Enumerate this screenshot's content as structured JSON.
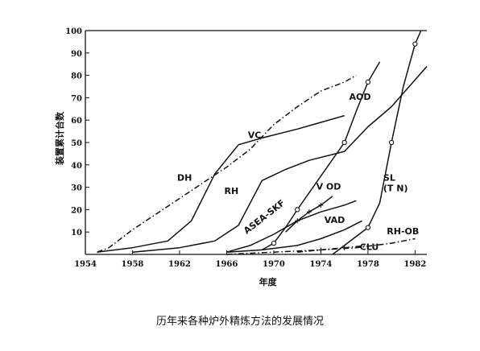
{
  "chart_data": {
    "type": "line",
    "title": "",
    "xlabel": "年度",
    "ylabel": "装置累计台数",
    "xlim": [
      1954,
      1983
    ],
    "ylim": [
      0,
      100
    ],
    "x_ticks": [
      1954,
      1958,
      1962,
      1966,
      1970,
      1974,
      1978,
      1982
    ],
    "y_ticks": [
      10,
      20,
      30,
      40,
      50,
      60,
      70,
      80,
      90,
      100
    ],
    "grid": false,
    "legend": "none",
    "series": [
      {
        "name": "DH",
        "style": "dashdot",
        "label_anchor": [
          1961.8,
          33
        ],
        "points": [
          [
            1955,
            1
          ],
          [
            1956,
            3
          ],
          [
            1958,
            11
          ],
          [
            1960,
            18
          ],
          [
            1962,
            25
          ],
          [
            1964,
            32
          ],
          [
            1966,
            39
          ],
          [
            1968,
            47
          ],
          [
            1970,
            58
          ],
          [
            1972,
            66
          ],
          [
            1974,
            73
          ],
          [
            1976,
            77
          ],
          [
            1977,
            80
          ]
        ]
      },
      {
        "name": "VC",
        "style": "solid",
        "label_anchor": [
          1967.8,
          52
        ],
        "points": [
          [
            1955,
            1
          ],
          [
            1958,
            3
          ],
          [
            1961,
            6
          ],
          [
            1963,
            15
          ],
          [
            1965,
            36
          ],
          [
            1967,
            49
          ],
          [
            1969,
            52
          ],
          [
            1972,
            56
          ],
          [
            1974,
            59
          ],
          [
            1976,
            62
          ]
        ]
      },
      {
        "name": "RH",
        "style": "solid",
        "label_anchor": [
          1965.8,
          27
        ],
        "points": [
          [
            1958,
            1
          ],
          [
            1962,
            3
          ],
          [
            1965,
            6
          ],
          [
            1967,
            13
          ],
          [
            1969,
            33
          ],
          [
            1971,
            38
          ],
          [
            1973,
            42
          ],
          [
            1976,
            46
          ],
          [
            1978,
            57
          ],
          [
            1980,
            66
          ],
          [
            1981,
            72
          ],
          [
            1983,
            84
          ]
        ]
      },
      {
        "name": "ASEA-SKF",
        "style": "solid",
        "label_anchor": [
          1967.7,
          9
        ],
        "points": [
          [
            1966,
            1
          ],
          [
            1968,
            4
          ],
          [
            1970,
            9
          ],
          [
            1972,
            15
          ],
          [
            1974,
            19
          ],
          [
            1976,
            22
          ],
          [
            1977,
            24
          ]
        ]
      },
      {
        "name": "AOD",
        "style": "solid",
        "marker": "circle",
        "label_anchor": [
          1976.4,
          69
        ],
        "points": [
          [
            1969,
            2
          ],
          [
            1970,
            5
          ],
          [
            1971,
            12
          ],
          [
            1972,
            20
          ],
          [
            1974,
            35
          ],
          [
            1976,
            50
          ],
          [
            1977,
            64
          ],
          [
            1978,
            77
          ],
          [
            1979,
            86
          ]
        ]
      },
      {
        "name": "V OD",
        "style": "solid",
        "marker": "cross",
        "label_anchor": [
          1973.6,
          29
        ],
        "points": [
          [
            1971,
            10
          ],
          [
            1972,
            15
          ],
          [
            1973,
            19
          ],
          [
            1974,
            22
          ],
          [
            1975,
            26
          ]
        ]
      },
      {
        "name": "VAD",
        "style": "solid",
        "label_anchor": [
          1974.3,
          14
        ],
        "points": [
          [
            1966,
            1
          ],
          [
            1969,
            2
          ],
          [
            1972,
            4
          ],
          [
            1974,
            7
          ],
          [
            1976,
            11
          ],
          [
            1977.5,
            15
          ]
        ]
      },
      {
        "name": "SL (T N)",
        "style": "solid",
        "marker": "circle",
        "label_anchor": [
          1979.3,
          33
        ],
        "points": [
          [
            1975,
            0
          ],
          [
            1978,
            12
          ],
          [
            1979,
            23
          ],
          [
            1980,
            50
          ],
          [
            1981,
            75
          ],
          [
            1982,
            94
          ],
          [
            1982.5,
            100
          ]
        ]
      },
      {
        "name": "RH-OB",
        "style": "dashdot",
        "label_anchor": [
          1979.6,
          9
        ],
        "points": [
          [
            1966,
            0
          ],
          [
            1970,
            1
          ],
          [
            1974,
            2
          ],
          [
            1977,
            3
          ],
          [
            1980,
            5
          ],
          [
            1982,
            7
          ]
        ]
      },
      {
        "name": "CLU",
        "style": "dashdot",
        "marker": "cross",
        "label_anchor": [
          1977.3,
          2
        ],
        "points": [
          [
            1972,
            1
          ],
          [
            1974,
            2
          ],
          [
            1976,
            3
          ],
          [
            1978,
            4
          ]
        ]
      }
    ]
  },
  "caption": "历年来各种炉外精炼方法的发展情况"
}
